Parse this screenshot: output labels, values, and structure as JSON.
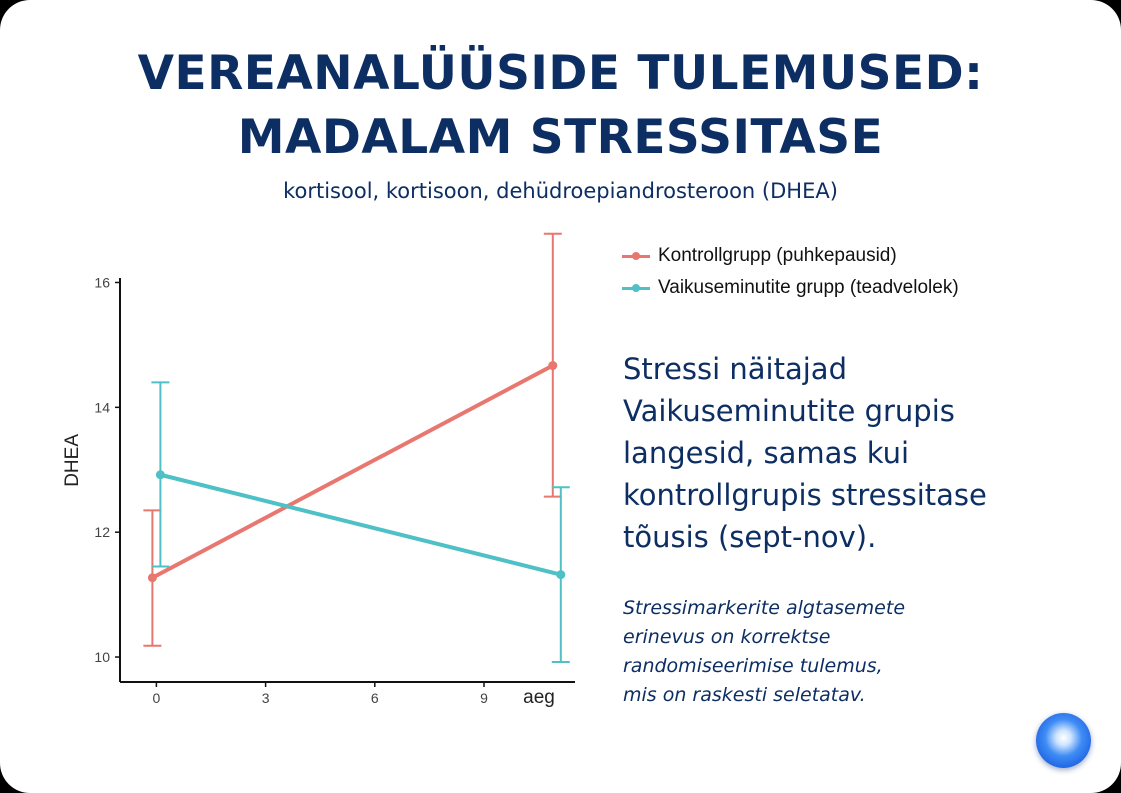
{
  "slide": {
    "title_line1": "VEREANALÜÜSIDE TULEMUSED:",
    "title_line2": "MADALAM STRESSITASE",
    "subtitle": "kortisool, kortisoon, dehüdroepiandrosteroon (DHEA)",
    "main_text": "Stressi näitajad Vaikuseminutite grupis langesid, samas kui kontrollgrupis stressitase tõusis (sept-nov).",
    "note": "Stressimarkerite algtasemete\nerinevus on korrektse\nrandomiseerimise tulemus,\nmis on raskesti seletatav.",
    "accent_color": "#0d2e63"
  },
  "chart_data": {
    "type": "line",
    "xlabel": "aeg",
    "ylabel": "DHEA",
    "xlim": [
      -1,
      11.5
    ],
    "ylim": [
      9.6,
      16.2
    ],
    "x_ticks": [
      0,
      3,
      6,
      9
    ],
    "y_ticks": [
      10,
      12,
      14,
      16
    ],
    "grid": false,
    "legend_position": "top-right",
    "series": [
      {
        "name": "Kontrollgrupp (puhkepausid)",
        "color": "#e8776f",
        "points": [
          {
            "x": 0,
            "y": 11.27,
            "err_low": 10.18,
            "err_high": 12.35
          },
          {
            "x": 11,
            "y": 14.67,
            "err_low": 12.57,
            "err_high": 16.78
          }
        ]
      },
      {
        "name": "Vaikuseminutite grupp (teadvelolek)",
        "color": "#4fc0c6",
        "points": [
          {
            "x": 0,
            "y": 12.92,
            "err_low": 11.45,
            "err_high": 14.4
          },
          {
            "x": 11,
            "y": 11.32,
            "err_low": 9.92,
            "err_high": 12.72
          }
        ]
      }
    ]
  }
}
